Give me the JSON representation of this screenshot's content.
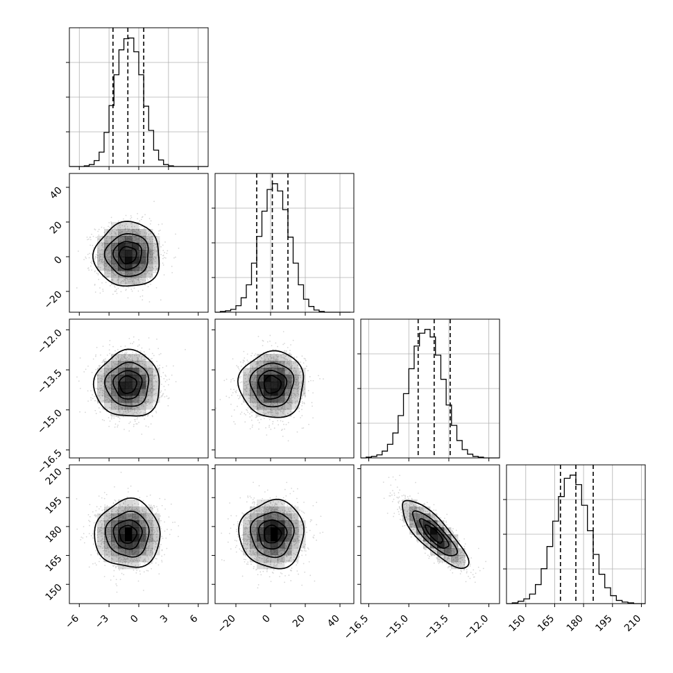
{
  "chart_data": {
    "type": "corner",
    "grid": true,
    "parameters": [
      {
        "mean": -1.1,
        "sd": 1.6,
        "q16": -2.6,
        "q50": -1.1,
        "q84": 0.5,
        "range": [
          -7,
          7
        ],
        "ticks": [
          -6,
          -3,
          0,
          3,
          6
        ],
        "tick_labels": [
          "−6",
          "−3",
          "0",
          "3",
          "6"
        ]
      },
      {
        "mean": 1.0,
        "sd": 9.0,
        "q16": -8,
        "q50": 1,
        "q84": 10,
        "range": [
          -32,
          48
        ],
        "ticks": [
          -20,
          0,
          20,
          40
        ],
        "tick_labels": [
          "−20",
          "0",
          "20",
          "40"
        ]
      },
      {
        "mean": -14.05,
        "sd": 0.6,
        "q16": -14.65,
        "q50": -14.05,
        "q84": -13.45,
        "range": [
          -16.8,
          -11.6
        ],
        "ticks": [
          -16.5,
          -15.0,
          -13.5,
          -12.0
        ],
        "tick_labels": [
          "−16.5",
          "−15.0",
          "−13.5",
          "−12.0"
        ]
      },
      {
        "mean": 176,
        "sd": 8.5,
        "q16": 168,
        "q50": 176,
        "q84": 185,
        "range": [
          140,
          212
        ],
        "ticks": [
          150,
          165,
          180,
          195,
          210
        ],
        "tick_labels": [
          "150",
          "165",
          "180",
          "195",
          "210"
        ]
      }
    ],
    "histograms": [
      {
        "param": 0,
        "bins": [
          -7,
          -6.5,
          -6,
          -5.5,
          -5,
          -4.5,
          -4,
          -3.5,
          -3,
          -2.5,
          -2,
          -1.5,
          -1,
          -0.5,
          0,
          0.5,
          1,
          1.5,
          2,
          2.5,
          3,
          3.5,
          4,
          4.5,
          5,
          5.5,
          6,
          6.5,
          7
        ],
        "counts": [
          0,
          0,
          0,
          1,
          3,
          9,
          22,
          52,
          93,
          140,
          178,
          195,
          196,
          175,
          140,
          92,
          55,
          25,
          10,
          3,
          1,
          0,
          0,
          0,
          0,
          0,
          0,
          0
        ]
      },
      {
        "param": 1,
        "bins": [
          -32,
          -29,
          -26,
          -23,
          -20,
          -17,
          -14,
          -11,
          -8,
          -5,
          -2,
          1,
          4,
          7,
          10,
          13,
          16,
          19,
          22,
          25,
          28,
          31,
          34,
          37,
          40,
          43,
          46
        ],
        "counts": [
          0,
          1,
          2,
          4,
          9,
          20,
          38,
          68,
          105,
          140,
          170,
          178,
          168,
          142,
          104,
          68,
          38,
          18,
          8,
          3,
          1,
          0,
          0,
          0,
          0,
          0
        ]
      },
      {
        "param": 2,
        "bins": [
          -16.8,
          -16.6,
          -16.4,
          -16.2,
          -16.0,
          -15.8,
          -15.6,
          -15.4,
          -15.2,
          -15.0,
          -14.8,
          -14.6,
          -14.4,
          -14.2,
          -14.0,
          -13.8,
          -13.6,
          -13.4,
          -13.2,
          -13.0,
          -12.8,
          -12.6,
          -12.4,
          -12.2,
          -12.0,
          -11.8,
          -11.6
        ],
        "counts": [
          0,
          1,
          2,
          4,
          9,
          18,
          33,
          56,
          85,
          118,
          148,
          165,
          170,
          160,
          136,
          104,
          70,
          43,
          23,
          11,
          5,
          2,
          1,
          0,
          0,
          0
        ]
      },
      {
        "param": 3,
        "bins": [
          140,
          143,
          146,
          149,
          152,
          155,
          158,
          161,
          164,
          167,
          170,
          173,
          176,
          179,
          182,
          185,
          188,
          191,
          194,
          197,
          200,
          203,
          206,
          209,
          212
        ],
        "counts": [
          0,
          1,
          3,
          6,
          12,
          24,
          44,
          72,
          104,
          135,
          158,
          162,
          150,
          124,
          92,
          62,
          37,
          20,
          10,
          4,
          2,
          1,
          0,
          0
        ]
      }
    ],
    "pairs": [
      {
        "x_param": 0,
        "y_param": 1,
        "correlation": 0.0
      },
      {
        "x_param": 0,
        "y_param": 2,
        "correlation": 0.0
      },
      {
        "x_param": 1,
        "y_param": 2,
        "correlation": 0.0
      },
      {
        "x_param": 0,
        "y_param": 3,
        "correlation": 0.0
      },
      {
        "x_param": 1,
        "y_param": 3,
        "correlation": 0.0
      },
      {
        "x_param": 2,
        "y_param": 3,
        "correlation": -0.82
      }
    ],
    "contour_levels_sigma": [
      0.5,
      1.0,
      1.5,
      2.0
    ],
    "scatter_color": "#000000",
    "density_color": "#000000",
    "line_color": "#000000",
    "grid_color": "#b0b0b0"
  }
}
